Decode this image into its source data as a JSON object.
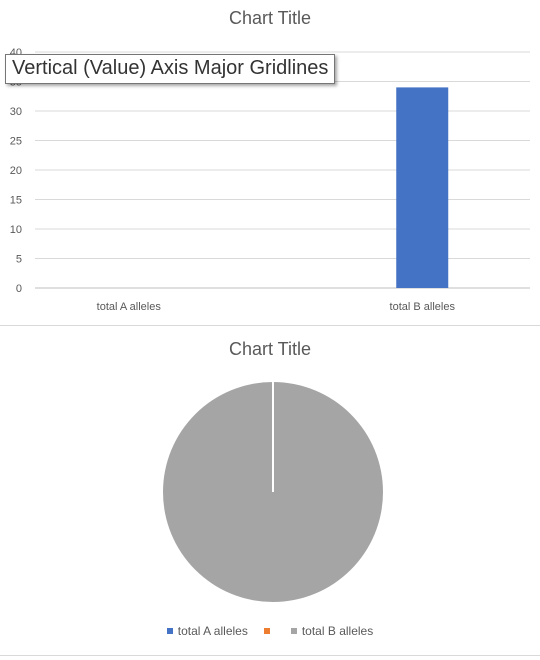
{
  "chart_data": [
    {
      "type": "bar",
      "title": "Chart Title",
      "categories": [
        "total A alleles",
        "total B alleles"
      ],
      "values": [
        0,
        34
      ],
      "ylim": [
        0,
        40
      ],
      "yticks": [
        0,
        5,
        10,
        15,
        20,
        25,
        30,
        35,
        40
      ],
      "xlabel": "",
      "ylabel": "",
      "grid": true,
      "bar_color": "#4472C4",
      "tooltip": "Vertical (Value) Axis Major Gridlines"
    },
    {
      "type": "pie",
      "title": "Chart Title",
      "labels": [
        "total A alleles",
        "total B alleles"
      ],
      "values": [
        0,
        34
      ],
      "legend_position": "bottom",
      "colors": {
        "total A alleles": "#4472C4",
        "hidden_series": "#ED7D31",
        "total B alleles": "#A5A5A5"
      },
      "legend": [
        {
          "label": "total A alleles",
          "color": "#4472C4"
        },
        {
          "label": "",
          "color": "#ED7D31"
        },
        {
          "label": "total B alleles",
          "color": "#A5A5A5"
        }
      ]
    }
  ]
}
